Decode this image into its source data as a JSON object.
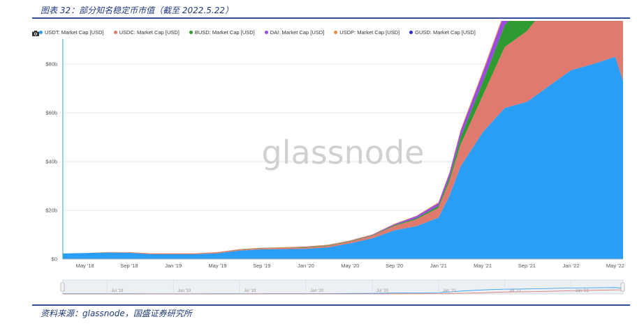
{
  "figure": {
    "title": "图表 32：部分知名稳定币市值（截至 2022.5.22）",
    "source": "资料来源：glassnode，国盛证券研究所"
  },
  "colors": {
    "USDT": "#2a9df4",
    "USDC": "#e07a6e",
    "BUSD": "#2f9a2f",
    "DAI": "#9b4be0",
    "USDP": "#f0883a",
    "GUSD": "#2a2ad0"
  },
  "chart_data": {
    "type": "area",
    "watermark": "glassnode",
    "legend_position": "top-left",
    "grid": true,
    "xlabel": "",
    "ylabel": "",
    "ylim": [
      0,
      88
    ],
    "y_ticks": [
      0,
      20,
      40,
      60,
      80
    ],
    "y_tick_labels": [
      "$0",
      "$20b",
      "$40b",
      "$60b",
      "$80b"
    ],
    "x_tick_labels": [
      "May '18",
      "Sep '18",
      "Jan '19",
      "May '19",
      "Sep '19",
      "Jan '20",
      "May '20",
      "Sep '20",
      "Jan '21",
      "May '21",
      "Sep '21",
      "Jan '22",
      "May '22"
    ],
    "navigator_labels": [
      "Jul '18",
      "Jan '19",
      "Jul '19",
      "Jan '20",
      "Jul '20",
      "Jan '21",
      "Jul '21",
      "Jan '22"
    ],
    "x": [
      "2018-03",
      "2018-05",
      "2018-07",
      "2018-09",
      "2018-11",
      "2019-01",
      "2019-03",
      "2019-05",
      "2019-07",
      "2019-09",
      "2019-11",
      "2020-01",
      "2020-03",
      "2020-05",
      "2020-07",
      "2020-09",
      "2020-11",
      "2021-01",
      "2021-02",
      "2021-03",
      "2021-05",
      "2021-07",
      "2021-09",
      "2021-11",
      "2022-01",
      "2022-03",
      "2022-05",
      "2022-05-22"
    ],
    "series": [
      {
        "name": "USDT: Market Cap [USD]",
        "values": [
          2.3,
          2.5,
          2.7,
          2.6,
          2.0,
          2.0,
          2.0,
          2.4,
          3.5,
          4.0,
          4.1,
          4.2,
          4.8,
          6.5,
          8.5,
          11.8,
          13.5,
          17.0,
          26.0,
          38.0,
          52.0,
          62.0,
          64.5,
          71.0,
          77.5,
          80.0,
          83.0,
          73.0
        ]
      },
      {
        "name": "USDC: Market Cap [USD]",
        "values": [
          0,
          0.0,
          0.1,
          0.2,
          0.3,
          0.3,
          0.3,
          0.4,
          0.4,
          0.5,
          0.5,
          0.5,
          0.6,
          0.7,
          1.0,
          1.8,
          2.8,
          4.0,
          6.0,
          9.0,
          15.0,
          25.0,
          29.0,
          34.0,
          42.0,
          48.0,
          52.0,
          53.0
        ]
      },
      {
        "name": "BUSD: Market Cap [USD]",
        "values": [
          0,
          0,
          0,
          0,
          0,
          0,
          0,
          0,
          0.1,
          0.1,
          0.1,
          0.2,
          0.2,
          0.2,
          0.2,
          0.3,
          0.5,
          0.8,
          1.5,
          3.0,
          5.5,
          9.0,
          11.5,
          12.0,
          14.0,
          16.5,
          18.0,
          17.5
        ]
      },
      {
        "name": "DAI: Market Cap [USD]",
        "values": [
          0,
          0,
          0,
          0,
          0,
          0,
          0,
          0,
          0,
          0,
          0,
          0.1,
          0.1,
          0.1,
          0.2,
          0.4,
          0.8,
          1.2,
          1.8,
          2.5,
          3.8,
          5.0,
          6.0,
          7.0,
          9.5,
          9.5,
          8.0,
          5.5
        ]
      },
      {
        "name": "USDP: Market Cap [USD]",
        "values": [
          0,
          0,
          0.1,
          0.1,
          0.1,
          0.1,
          0.1,
          0.1,
          0.1,
          0.1,
          0.2,
          0.2,
          0.2,
          0.2,
          0.2,
          0.2,
          0.2,
          0.3,
          0.4,
          0.6,
          0.7,
          0.8,
          0.9,
          0.9,
          0.9,
          0.9,
          0.9,
          0.9
        ]
      },
      {
        "name": "GUSD: Market Cap [USD]",
        "values": [
          0,
          0,
          0,
          0,
          0,
          0,
          0,
          0,
          0,
          0,
          0,
          0,
          0,
          0,
          0,
          0,
          0,
          0,
          0,
          0,
          0.1,
          0.1,
          0.1,
          0.1,
          0.1,
          0.2,
          0.2,
          0.2
        ]
      }
    ]
  }
}
